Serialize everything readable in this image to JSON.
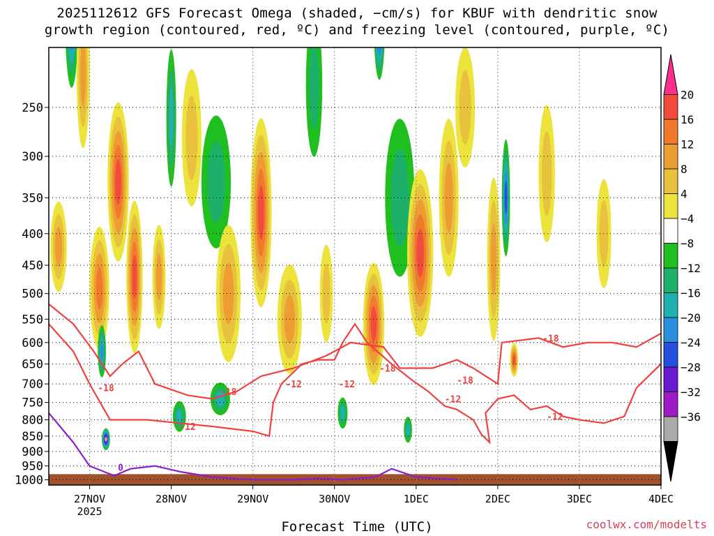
{
  "title_line_1": "2025112612 GFS Forecast Omega (shaded, −cm/s) for KBUF with dendritic snow",
  "title_line_2": "growth region (contoured, red, ºC) and freezing level (contoured, purple, ºC)",
  "credit": "coolwx.com/modelts",
  "chart_data": {
    "type": "heatmap",
    "xlabel": "Forecast Time (UTC)",
    "ylabel": "",
    "x_ticks": [
      {
        "t": 0.5,
        "label": "27NOV",
        "sublabel": "2025"
      },
      {
        "t": 1.5,
        "label": "28NOV"
      },
      {
        "t": 2.5,
        "label": "29NOV"
      },
      {
        "t": 3.5,
        "label": "30NOV"
      },
      {
        "t": 4.5,
        "label": "1DEC"
      },
      {
        "t": 5.5,
        "label": "2DEC"
      },
      {
        "t": 6.5,
        "label": "3DEC"
      },
      {
        "t": 7.5,
        "label": "4DEC"
      }
    ],
    "xlim": [
      0,
      7.5
    ],
    "y_ticks": [
      250,
      300,
      350,
      400,
      450,
      500,
      550,
      600,
      650,
      700,
      750,
      800,
      850,
      900,
      950,
      1000
    ],
    "ylim": [
      200,
      1020
    ],
    "y_scale": "log",
    "grid": true,
    "colorbar": {
      "labels": [
        "20",
        "16",
        "12",
        "8",
        "4",
        "−4",
        "−8",
        "−12",
        "−16",
        "−20",
        "−24",
        "−28",
        "−32",
        "−36"
      ],
      "colors": [
        "#ff2d8c",
        "#f24a3d",
        "#f07a2a",
        "#ee9d32",
        "#e8c23d",
        "#ece43c",
        "#ffffff",
        "#1fbf1f",
        "#1cb06a",
        "#1fb0b0",
        "#2b8fe0",
        "#2450e0",
        "#6a1ad0",
        "#a01ac8",
        "#aaaaaa",
        "#000000"
      ]
    },
    "omega_blobs": [
      {
        "t": 0.12,
        "p": 420,
        "dt": 0.1,
        "dp": 140,
        "v": 10
      },
      {
        "t": 0.28,
        "p": 180,
        "dt": 0.08,
        "dp": 90,
        "v": -20
      },
      {
        "t": 0.42,
        "p": 220,
        "dt": 0.08,
        "dp": 120,
        "v": 12
      },
      {
        "t": 0.62,
        "p": 490,
        "dt": 0.12,
        "dp": 220,
        "v": 16
      },
      {
        "t": 0.85,
        "p": 330,
        "dt": 0.13,
        "dp": 190,
        "v": 18
      },
      {
        "t": 1.05,
        "p": 470,
        "dt": 0.1,
        "dp": 260,
        "v": 20
      },
      {
        "t": 0.7,
        "p": 860,
        "dt": 0.05,
        "dp": 70,
        "v": -30
      },
      {
        "t": 0.65,
        "p": 620,
        "dt": 0.05,
        "dp": 120,
        "v": -14
      },
      {
        "t": 1.35,
        "p": 470,
        "dt": 0.08,
        "dp": 180,
        "v": 12
      },
      {
        "t": 1.5,
        "p": 260,
        "dt": 0.06,
        "dp": 130,
        "v": -10
      },
      {
        "t": 1.75,
        "p": 280,
        "dt": 0.12,
        "dp": 140,
        "v": 8
      },
      {
        "t": 2.05,
        "p": 330,
        "dt": 0.18,
        "dp": 160,
        "v": -8
      },
      {
        "t": 2.2,
        "p": 500,
        "dt": 0.15,
        "dp": 250,
        "v": 12
      },
      {
        "t": 2.6,
        "p": 370,
        "dt": 0.13,
        "dp": 250,
        "v": 20
      },
      {
        "t": 2.95,
        "p": 550,
        "dt": 0.15,
        "dp": 220,
        "v": 10
      },
      {
        "t": 3.25,
        "p": 230,
        "dt": 0.1,
        "dp": 120,
        "v": -8
      },
      {
        "t": 3.4,
        "p": 500,
        "dt": 0.08,
        "dp": 180,
        "v": 8
      },
      {
        "t": 4.05,
        "p": 180,
        "dt": 0.07,
        "dp": 80,
        "v": -26
      },
      {
        "t": 3.98,
        "p": 560,
        "dt": 0.13,
        "dp": 250,
        "v": 20
      },
      {
        "t": 4.3,
        "p": 350,
        "dt": 0.18,
        "dp": 200,
        "v": -8
      },
      {
        "t": 4.55,
        "p": 430,
        "dt": 0.16,
        "dp": 260,
        "v": 20
      },
      {
        "t": 4.9,
        "p": 350,
        "dt": 0.12,
        "dp": 200,
        "v": 10
      },
      {
        "t": 5.1,
        "p": 250,
        "dt": 0.12,
        "dp": 110,
        "v": 6
      },
      {
        "t": 5.45,
        "p": 440,
        "dt": 0.08,
        "dp": 260,
        "v": 12
      },
      {
        "t": 5.6,
        "p": 350,
        "dt": 0.05,
        "dp": 150,
        "v": -18
      },
      {
        "t": 5.7,
        "p": 640,
        "dt": 0.05,
        "dp": 80,
        "v": 18
      },
      {
        "t": 6.1,
        "p": 320,
        "dt": 0.1,
        "dp": 160,
        "v": 6
      },
      {
        "t": 6.8,
        "p": 400,
        "dt": 0.09,
        "dp": 160,
        "v": 6
      },
      {
        "t": 3.6,
        "p": 780,
        "dt": 0.06,
        "dp": 90,
        "v": -10
      },
      {
        "t": 4.4,
        "p": 830,
        "dt": 0.05,
        "dp": 80,
        "v": -12
      },
      {
        "t": 2.1,
        "p": 740,
        "dt": 0.12,
        "dp": 90,
        "v": -10
      },
      {
        "t": 1.6,
        "p": 790,
        "dt": 0.08,
        "dp": 90,
        "v": -10
      }
    ],
    "lines": [
      {
        "name": "-12",
        "color": "#f04040",
        "points": [
          [
            0.0,
            560
          ],
          [
            0.3,
            620
          ],
          [
            0.5,
            700
          ],
          [
            0.75,
            800
          ],
          [
            1.2,
            800
          ],
          [
            1.6,
            810
          ],
          [
            2.0,
            820
          ],
          [
            2.5,
            835
          ],
          [
            2.7,
            850
          ],
          [
            2.75,
            750
          ],
          [
            2.85,
            700
          ],
          [
            3.1,
            650
          ],
          [
            3.3,
            640
          ],
          [
            3.5,
            640
          ],
          [
            3.6,
            600
          ],
          [
            3.75,
            560
          ],
          [
            3.9,
            600
          ],
          [
            4.2,
            650
          ],
          [
            4.45,
            690
          ],
          [
            4.65,
            720
          ],
          [
            4.85,
            760
          ],
          [
            5.0,
            770
          ],
          [
            5.2,
            800
          ],
          [
            5.3,
            845
          ],
          [
            5.4,
            870
          ],
          [
            5.35,
            780
          ],
          [
            5.5,
            740
          ],
          [
            5.7,
            730
          ],
          [
            5.9,
            770
          ],
          [
            6.1,
            760
          ],
          [
            6.3,
            790
          ],
          [
            6.5,
            800
          ],
          [
            6.8,
            810
          ],
          [
            7.05,
            790
          ],
          [
            7.2,
            710
          ],
          [
            7.5,
            650
          ]
        ]
      },
      {
        "name": "-18",
        "color": "#f04040",
        "points": [
          [
            0.0,
            520
          ],
          [
            0.3,
            560
          ],
          [
            0.55,
            620
          ],
          [
            0.75,
            680
          ],
          [
            0.9,
            650
          ],
          [
            1.1,
            620
          ],
          [
            1.3,
            700
          ],
          [
            1.7,
            730
          ],
          [
            2.0,
            740
          ],
          [
            2.3,
            720
          ],
          [
            2.6,
            680
          ],
          [
            3.0,
            660
          ],
          [
            3.4,
            630
          ],
          [
            3.7,
            600
          ],
          [
            4.1,
            610
          ],
          [
            4.3,
            660
          ],
          [
            4.7,
            660
          ],
          [
            4.85,
            650
          ],
          [
            5.0,
            640
          ],
          [
            5.2,
            660
          ],
          [
            5.5,
            700
          ],
          [
            5.55,
            600
          ],
          [
            6.0,
            590
          ],
          [
            6.3,
            610
          ],
          [
            6.6,
            600
          ],
          [
            6.9,
            600
          ],
          [
            7.2,
            610
          ],
          [
            7.5,
            580
          ]
        ]
      },
      {
        "name": "0",
        "color": "#8a1fc8",
        "points": [
          [
            0.0,
            780
          ],
          [
            0.3,
            870
          ],
          [
            0.5,
            950
          ],
          [
            0.8,
            985
          ],
          [
            1.0,
            960
          ],
          [
            1.3,
            950
          ],
          [
            1.6,
            970
          ],
          [
            2.0,
            990
          ],
          [
            2.5,
            1000
          ],
          [
            3.0,
            1000
          ],
          [
            3.3,
            995
          ],
          [
            3.6,
            1000
          ],
          [
            4.0,
            990
          ],
          [
            4.2,
            960
          ],
          [
            4.35,
            975
          ],
          [
            4.5,
            990
          ],
          [
            5.0,
            1000
          ]
        ]
      }
    ],
    "line_labels": [
      {
        "text": "-18",
        "t": 0.7,
        "p": 710
      },
      {
        "text": "-12",
        "t": 1.7,
        "p": 820
      },
      {
        "text": "-18",
        "t": 2.2,
        "p": 720
      },
      {
        "text": "-12",
        "t": 3.0,
        "p": 700
      },
      {
        "text": "-12",
        "t": 3.65,
        "p": 700
      },
      {
        "text": "-18",
        "t": 4.15,
        "p": 660
      },
      {
        "text": "-18",
        "t": 5.1,
        "p": 690
      },
      {
        "text": "-12",
        "t": 4.95,
        "p": 740
      },
      {
        "text": "-18",
        "t": 6.15,
        "p": 590
      },
      {
        "text": "-12",
        "t": 6.2,
        "p": 790
      },
      {
        "text": "0",
        "t": 0.88,
        "p": 955
      }
    ]
  }
}
